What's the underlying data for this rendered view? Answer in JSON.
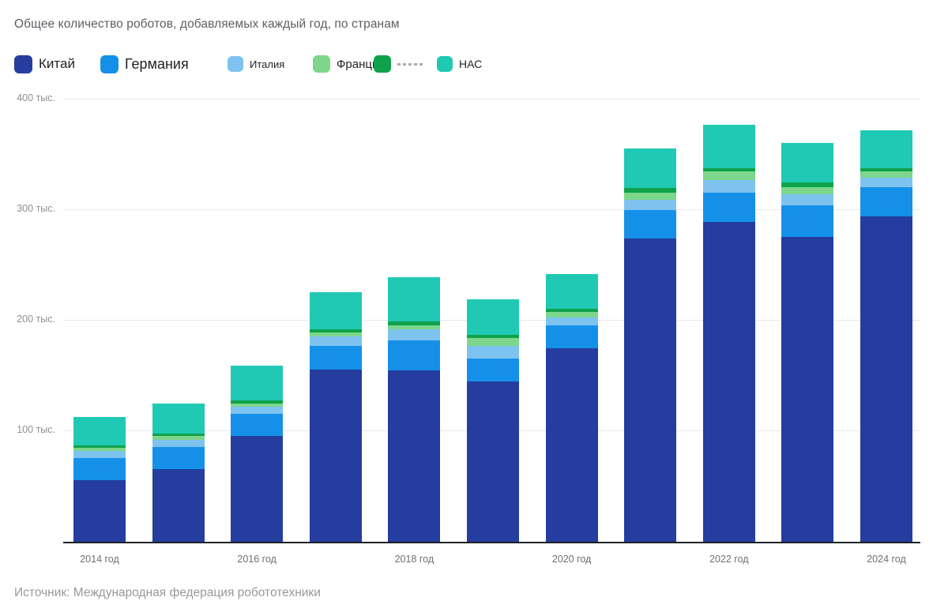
{
  "title": "Общее количество роботов, добавляемых каждый год, по странам",
  "source": "Источник: Международная федерация робототехники",
  "colors": {
    "china": "#243D9E",
    "germany": "#1590E8",
    "italy": "#7EC3F0",
    "france": "#7CD78C",
    "green_series": "#0FA24A",
    "nac": "#20C9B3",
    "gridline": "#e7e8e9",
    "axis_line": "#202327"
  },
  "chart_data": {
    "type": "bar",
    "stacked": true,
    "unit": "тыс.",
    "title": "Общее количество роботов, добавляемых каждый год, по странам",
    "categories": [
      2014,
      2015,
      2016,
      2017,
      2018,
      2019,
      2020,
      2021,
      2022,
      2023,
      2024
    ],
    "x_tick_labels": [
      "2014 год",
      "2016 год",
      "2018 год",
      "2020 год",
      "2022 год",
      "2024 год"
    ],
    "x_ticks_every_n_years": 2,
    "y_ticks": [
      {
        "value": 100,
        "label": "100 тыс."
      },
      {
        "value": 200,
        "label": "200 тыс."
      },
      {
        "value": 300,
        "label": "300 тыс."
      },
      {
        "value": 400,
        "label": "400 тыс."
      }
    ],
    "ylim": [
      0,
      400
    ],
    "grid": true,
    "legend_position": "top",
    "series": [
      {
        "name": "Китай",
        "color": "#243D9E",
        "values": [
          56,
          66,
          96,
          156,
          155,
          145,
          175,
          274,
          289,
          276,
          294
        ]
      },
      {
        "name": "Германия",
        "color": "#1590E8",
        "values": [
          20,
          20,
          20,
          21,
          27,
          21,
          21,
          26,
          27,
          28,
          27
        ]
      },
      {
        "name": "Италия",
        "color": "#7EC3F0",
        "values": [
          6,
          6,
          6,
          9,
          10,
          11,
          7,
          9,
          11,
          10,
          8
        ]
      },
      {
        "name": "Франция",
        "color": "#7CD78C",
        "values": [
          3,
          4,
          3,
          3,
          4,
          7,
          5,
          7,
          8,
          7,
          6
        ]
      },
      {
        "name": "",
        "color": "#0FA24A",
        "values": [
          2,
          2,
          3,
          3,
          3,
          3,
          3,
          4,
          3,
          4,
          3
        ]
      },
      {
        "name": "НАС",
        "color": "#20C9B3",
        "values": [
          26,
          27,
          31,
          34,
          40,
          32,
          31,
          36,
          39,
          36,
          34
        ]
      }
    ],
    "totals": [
      113,
      125,
      159,
      226,
      239,
      219,
      242,
      356,
      377,
      361,
      372
    ]
  }
}
